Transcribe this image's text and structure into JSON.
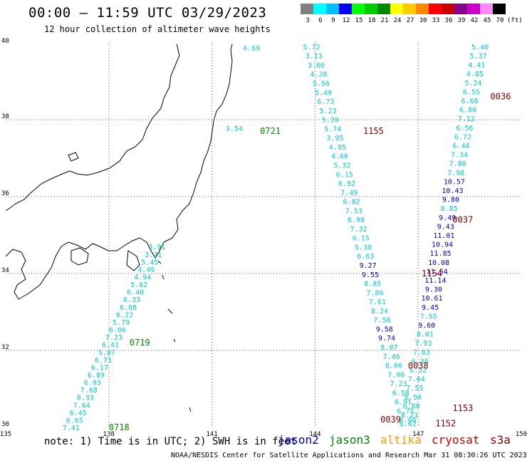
{
  "header": {
    "title": "00:00 – 11:59 UTC 03/29/2023",
    "subtitle": "12 hour collection of altimeter wave heights"
  },
  "legend": {
    "ticks": [
      "3",
      "6",
      "9",
      "12",
      "15",
      "18",
      "21",
      "24",
      "27",
      "30",
      "33",
      "36",
      "39",
      "42",
      "45",
      "70"
    ],
    "unit": "(ft)",
    "colors": [
      "#808080",
      "#00ffff",
      "#00bfff",
      "#0000ff",
      "#00ff00",
      "#00cc00",
      "#008800",
      "#ffff00",
      "#ffcc00",
      "#ff8800",
      "#ff0000",
      "#cc0000",
      "#880088",
      "#cc00cc",
      "#ff88ff",
      "#000000"
    ]
  },
  "axes": {
    "lon_labels": [
      "135",
      "138",
      "141",
      "144",
      "147",
      "150"
    ],
    "lat_labels": [
      "40",
      "38",
      "36",
      "34",
      "32",
      "30"
    ],
    "lon_range": [
      135,
      150
    ],
    "lat_range": [
      30,
      40
    ]
  },
  "tracks": [
    {
      "name": "altika-west",
      "color": "#00cccc",
      "lon_start": 136.9,
      "lon_end": 139.4,
      "lat_start": 30.0,
      "lat_end": 34.7,
      "values": [
        "7.41",
        "6.65",
        "6.45",
        "7.64",
        "8.33",
        "7.68",
        "6.93",
        "6.89",
        "6.17",
        "6.71",
        "5.87",
        "6.41",
        "7.23",
        "6.06",
        "5.79",
        "6.22",
        "6.08",
        "6.33",
        "6.48",
        "5.62",
        "4.94",
        "4.49",
        "5.45",
        "3.21",
        "3.91"
      ]
    },
    {
      "name": "altika-coast",
      "color": "#00cccc",
      "points": [
        {
          "lon": 141.4,
          "lat": 37.7,
          "v": "3.54"
        },
        {
          "lon": 141.9,
          "lat": 39.8,
          "v": "4.69"
        }
      ]
    },
    {
      "name": "jason3-east",
      "color": "#00cccc",
      "lon_start": 143.9,
      "lon_end": 146.7,
      "lat_start": 39.9,
      "lat_end": 30.2,
      "values": [
        "5.72",
        "3.13",
        "3.66",
        "4.28",
        "5.56",
        "5.49",
        "6.73",
        "5.23",
        "5.20",
        "5.74",
        "3.95",
        "4.95",
        "4.66",
        "5.32",
        "6.15",
        "6.92",
        "7.49",
        "6.82",
        "7.53",
        "6.98",
        "7.32",
        "6.15",
        "5.38",
        "6.63",
        "9.27",
        "9.55",
        "8.85",
        "7.86",
        "7.61",
        "8.24",
        "7.58",
        "9.58",
        "9.74",
        "8.07",
        "7.46",
        "8.00",
        "7.90",
        "7.23",
        "6.58",
        "6.91",
        "6.75",
        "6.66"
      ]
    },
    {
      "name": "cryosat-east",
      "color": "#00cccc",
      "lon_start": 148.8,
      "lon_end": 146.7,
      "lat_start": 39.9,
      "lat_end": 30.1,
      "values": [
        "5.40",
        "5.37",
        "4.41",
        "4.85",
        "5.24",
        "6.55",
        "6.68",
        "6.80",
        "7.12",
        "6.56",
        "6.72",
        "6.48",
        "7.34",
        "7.80",
        "7.98",
        "10.57",
        "10.43",
        "9.80",
        "8.85",
        "9.49",
        "9.43",
        "11.01",
        "10.94",
        "11.85",
        "10.08",
        "11.54",
        "11.14",
        "9.30",
        "10.61",
        "9.45",
        "7.55",
        "9.60",
        "8.01",
        "7.93",
        "7.63",
        "6.38",
        "6.32",
        "7.64",
        "7.55",
        "6.94",
        "6.88",
        "8.21",
        "6.62"
      ]
    }
  ],
  "time_labels": [
    {
      "text": "0721",
      "color": "#008800",
      "lon": 142.4,
      "lat": 37.7
    },
    {
      "text": "0719",
      "color": "#008800",
      "lon": 138.6,
      "lat": 32.2
    },
    {
      "text": "0718",
      "color": "#008800",
      "lon": 138.0,
      "lat": 30.0
    },
    {
      "text": "1155",
      "color": "#880000",
      "lon": 145.4,
      "lat": 37.7
    },
    {
      "text": "0036",
      "color": "#880000",
      "lon": 149.1,
      "lat": 38.6
    },
    {
      "text": "0037",
      "color": "#880000",
      "lon": 148.0,
      "lat": 35.4
    },
    {
      "text": "1154",
      "color": "#880000",
      "lon": 147.1,
      "lat": 34.0
    },
    {
      "text": "0038",
      "color": "#880000",
      "lon": 146.7,
      "lat": 31.6
    },
    {
      "text": "1153",
      "color": "#880000",
      "lon": 148.0,
      "lat": 30.5
    },
    {
      "text": "0039",
      "color": "#880000",
      "lon": 145.9,
      "lat": 30.2
    },
    {
      "text": "1152",
      "color": "#880000",
      "lon": 147.5,
      "lat": 30.1
    }
  ],
  "footer": {
    "note": "note: 1) Time is in UTC; 2) SWH is in feet",
    "satellites": [
      {
        "label": "jason2",
        "color": "#0000cc"
      },
      {
        "label": "jason3",
        "color": "#008800"
      },
      {
        "label": "altika",
        "color": "#ff9900"
      },
      {
        "label": "cryosat",
        "color": "#cc0000"
      },
      {
        "label": "s3a",
        "color": "#880000"
      }
    ],
    "credit": "NOAA/NESDIS Center for Satellite Applications and Research   Mar 31 08:30:26 UTC 2023"
  }
}
